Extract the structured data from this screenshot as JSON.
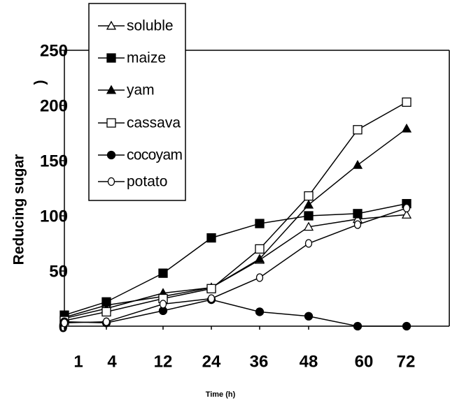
{
  "chart_data": {
    "type": "line",
    "ylabel": "Reducing sugar",
    "ylabel_suffix": ")",
    "xlabel": "Time (h)",
    "categories": [
      "1",
      "4",
      "12",
      "24",
      "36",
      "48",
      "60",
      "72"
    ],
    "ylim": [
      0,
      250
    ],
    "yticks": [
      0,
      50,
      100,
      150,
      200,
      250
    ],
    "series": [
      {
        "name": "soluble",
        "color": "#000000",
        "marker": "triangle-open",
        "values": [
          8,
          19,
          27,
          35,
          60,
          90,
          97,
          101
        ]
      },
      {
        "name": "maize",
        "color": "#000000",
        "marker": "square",
        "values": [
          10,
          22,
          48,
          80,
          93,
          100,
          102,
          111
        ]
      },
      {
        "name": "yam",
        "color": "#000000",
        "marker": "triangle",
        "values": [
          7,
          16,
          30,
          35,
          61,
          110,
          146,
          179
        ]
      },
      {
        "name": "cassava",
        "color": "#000000",
        "marker": "square-open",
        "values": [
          5,
          13,
          25,
          34,
          70,
          118,
          178,
          203
        ]
      },
      {
        "name": "cocoyam",
        "color": "#000000",
        "marker": "circle",
        "values": [
          4,
          3,
          14,
          24,
          13,
          9,
          0,
          0
        ]
      },
      {
        "name": "potato",
        "color": "#000000",
        "marker": "circle-open",
        "values": [
          3,
          4,
          20,
          25,
          44,
          75,
          92,
          107
        ]
      }
    ]
  }
}
